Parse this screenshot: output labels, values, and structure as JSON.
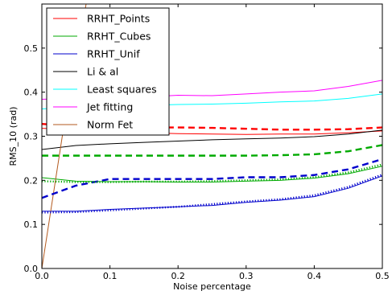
{
  "chart_data": {
    "type": "line",
    "title": "",
    "xlabel": "Noise percentage",
    "ylabel": "RMS_10 (rad)",
    "xlim": [
      0.0,
      0.5
    ],
    "ylim": [
      0.0,
      0.6
    ],
    "xticks": [
      "0.0",
      "0.1",
      "0.2",
      "0.3",
      "0.4",
      "0.5"
    ],
    "yticks": [
      "0.0",
      "0.1",
      "0.2",
      "0.3",
      "0.4",
      "0.5"
    ],
    "grid": false,
    "legend_position": "top-left",
    "series": [
      {
        "name": "RRHT_Points",
        "color": "#ff0000",
        "style": "solid",
        "x": [
          0.0,
          0.05,
          0.1,
          0.15,
          0.2,
          0.25,
          0.3,
          0.35,
          0.4,
          0.45,
          0.5
        ],
        "y": [
          0.318,
          0.315,
          0.31,
          0.308,
          0.306,
          0.305,
          0.304,
          0.305,
          0.305,
          0.308,
          0.312
        ]
      },
      {
        "name": "RRHT_Cubes",
        "color": "#00aa00",
        "style": "solid",
        "x": [
          0.0,
          0.05,
          0.1,
          0.15,
          0.2,
          0.25,
          0.3,
          0.35,
          0.4,
          0.45,
          0.5
        ],
        "y": [
          0.206,
          0.198,
          0.197,
          0.197,
          0.196,
          0.196,
          0.198,
          0.2,
          0.205,
          0.215,
          0.232
        ]
      },
      {
        "name": "RRHT_Unif",
        "color": "#0000cc",
        "style": "solid",
        "x": [
          0.0,
          0.05,
          0.1,
          0.15,
          0.2,
          0.25,
          0.3,
          0.35,
          0.4,
          0.45,
          0.5
        ],
        "y": [
          0.13,
          0.13,
          0.134,
          0.137,
          0.14,
          0.143,
          0.15,
          0.155,
          0.163,
          0.182,
          0.21
        ]
      },
      {
        "name": "Li & al",
        "color": "#000000",
        "style": "solid",
        "x": [
          0.0,
          0.05,
          0.1,
          0.15,
          0.2,
          0.25,
          0.3,
          0.35,
          0.4,
          0.45,
          0.5
        ],
        "y": [
          0.27,
          0.279,
          0.283,
          0.286,
          0.289,
          0.292,
          0.294,
          0.296,
          0.299,
          0.305,
          0.314
        ]
      },
      {
        "name": "Least squares",
        "color": "#00ffff",
        "style": "solid",
        "x": [
          0.0,
          0.05,
          0.1,
          0.15,
          0.2,
          0.25,
          0.3,
          0.35,
          0.4,
          0.45,
          0.5
        ],
        "y": [
          0.362,
          0.366,
          0.368,
          0.37,
          0.372,
          0.373,
          0.375,
          0.378,
          0.38,
          0.386,
          0.396
        ]
      },
      {
        "name": "Jet fitting",
        "color": "#ff00ff",
        "style": "solid",
        "x": [
          0.0,
          0.05,
          0.1,
          0.15,
          0.2,
          0.25,
          0.3,
          0.35,
          0.4,
          0.45,
          0.5
        ],
        "y": [
          0.384,
          0.386,
          0.388,
          0.389,
          0.393,
          0.392,
          0.396,
          0.4,
          0.403,
          0.413,
          0.427
        ]
      },
      {
        "name": "Norm Fet",
        "color": "#b35a1f",
        "style": "solid",
        "x": [
          0.0,
          0.03,
          0.065
        ],
        "y": [
          0.0,
          0.3,
          0.6
        ]
      },
      {
        "name": "",
        "color": "#ff0000",
        "style": "dashed",
        "x": [
          0.0,
          0.05,
          0.1,
          0.15,
          0.2,
          0.25,
          0.3,
          0.35,
          0.4,
          0.45,
          0.5
        ],
        "y": [
          0.328,
          0.323,
          0.321,
          0.32,
          0.32,
          0.319,
          0.317,
          0.315,
          0.315,
          0.316,
          0.32
        ]
      },
      {
        "name": "",
        "color": "#00aa00",
        "style": "dashed",
        "x": [
          0.0,
          0.05,
          0.1,
          0.15,
          0.2,
          0.25,
          0.3,
          0.35,
          0.4,
          0.45,
          0.5
        ],
        "y": [
          0.256,
          0.256,
          0.256,
          0.256,
          0.256,
          0.256,
          0.256,
          0.257,
          0.259,
          0.266,
          0.28
        ]
      },
      {
        "name": "",
        "color": "#0000cc",
        "style": "dashed",
        "x": [
          0.0,
          0.05,
          0.1,
          0.15,
          0.2,
          0.25,
          0.3,
          0.35,
          0.4,
          0.45,
          0.5
        ],
        "y": [
          0.16,
          0.188,
          0.203,
          0.203,
          0.203,
          0.203,
          0.207,
          0.207,
          0.212,
          0.225,
          0.248
        ]
      },
      {
        "name": "",
        "color": "#00aa00",
        "style": "dotted",
        "x": [
          0.0,
          0.05,
          0.1,
          0.15,
          0.2,
          0.25,
          0.3,
          0.35,
          0.4,
          0.45,
          0.5
        ],
        "y": [
          0.198,
          0.196,
          0.196,
          0.197,
          0.197,
          0.198,
          0.2,
          0.202,
          0.207,
          0.218,
          0.236
        ]
      },
      {
        "name": "",
        "color": "#0000cc",
        "style": "dotted",
        "x": [
          0.0,
          0.05,
          0.1,
          0.15,
          0.2,
          0.25,
          0.3,
          0.35,
          0.4,
          0.45,
          0.5
        ],
        "y": [
          0.127,
          0.128,
          0.132,
          0.136,
          0.14,
          0.146,
          0.152,
          0.157,
          0.166,
          0.185,
          0.213
        ]
      }
    ]
  }
}
